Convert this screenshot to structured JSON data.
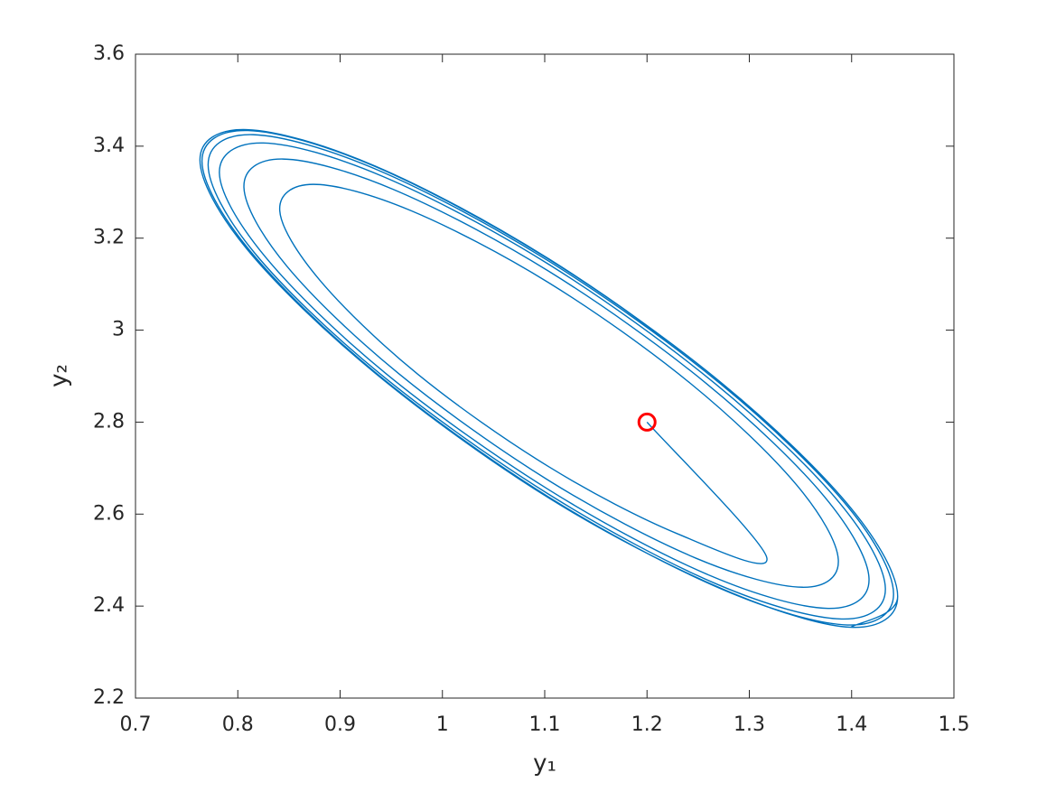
{
  "chart_data": {
    "type": "line",
    "xlabel": "y₁",
    "ylabel": "y₂",
    "xlim": [
      0.7,
      1.5
    ],
    "ylim": [
      2.2,
      3.6
    ],
    "xticks": [
      0.7,
      0.8,
      0.9,
      1,
      1.1,
      1.2,
      1.3,
      1.4,
      1.5
    ],
    "yticks": [
      2.2,
      2.4,
      2.6,
      2.8,
      3,
      3.2,
      3.4,
      3.6
    ],
    "box": true,
    "series": [
      {
        "color": "#0072bd",
        "marker": null,
        "x": [
          1.2,
          1.317,
          1.229,
          1.104,
          0.976,
          0.88,
          0.841,
          0.874,
          0.969,
          1.104,
          1.242,
          1.346,
          1.387,
          1.352,
          1.248,
          1.104,
          0.957,
          0.848,
          0.806,
          0.844,
          0.952,
          1.104,
          1.258,
          1.373,
          1.417,
          1.377,
          1.262,
          1.104,
          0.944,
          0.827,
          0.782,
          0.825,
          0.942,
          1.104,
          1.267,
          1.388,
          1.433,
          1.39,
          1.269,
          1.104,
          0.938,
          0.816,
          0.771,
          0.815,
          0.937,
          1.104,
          1.272,
          1.396,
          1.441,
          1.396,
          1.273,
          1.104,
          0.935,
          0.811,
          0.765,
          0.81,
          0.934,
          1.104,
          1.274,
          1.399,
          1.445,
          1.399,
          1.274,
          1.104,
          0.934,
          0.809,
          0.763,
          0.809,
          0.934,
          1.104,
          1.274,
          1.399,
          1.445,
          1.399
        ],
        "y": [
          2.8,
          2.506,
          2.558,
          2.703,
          2.904,
          3.109,
          3.26,
          3.317,
          3.26,
          3.103,
          2.885,
          2.664,
          2.501,
          2.441,
          2.504,
          2.673,
          2.906,
          3.139,
          3.31,
          3.372,
          3.306,
          3.128,
          2.884,
          2.639,
          2.46,
          2.395,
          2.466,
          2.653,
          2.907,
          3.159,
          3.342,
          3.407,
          3.334,
          3.143,
          2.883,
          2.625,
          2.438,
          2.372,
          2.447,
          2.643,
          2.907,
          3.169,
          3.359,
          3.425,
          3.348,
          3.15,
          2.883,
          2.617,
          2.426,
          2.359,
          2.437,
          2.637,
          2.907,
          3.175,
          3.367,
          3.434,
          3.356,
          3.154,
          2.883,
          2.614,
          2.421,
          2.354,
          2.437,
          2.635,
          2.907,
          3.176,
          3.37,
          3.436,
          3.357,
          3.155,
          2.883,
          2.614,
          2.421,
          2.354
        ]
      },
      {
        "color": "#ff0000",
        "marker": "o",
        "x": [
          1.2
        ],
        "y": [
          2.8
        ]
      }
    ]
  }
}
